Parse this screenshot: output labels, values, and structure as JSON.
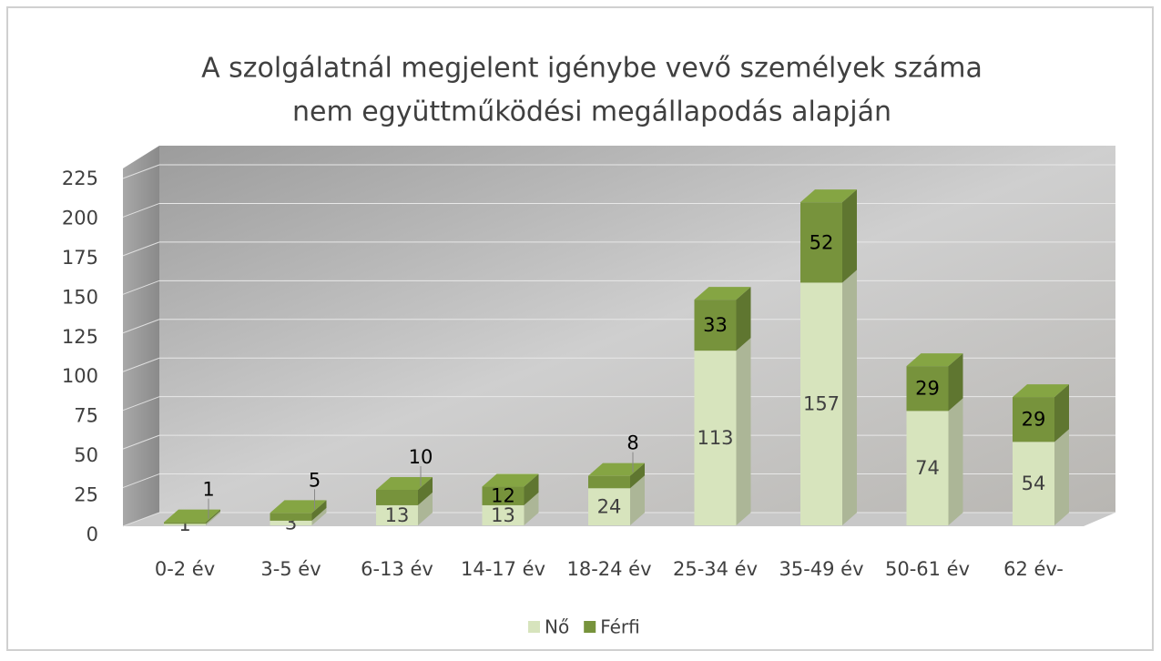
{
  "chart_data": {
    "type": "bar3d-stacked",
    "title": [
      "A szolgálatnál megjelent igénybe vevő személyek száma",
      "nem együttműködési megállapodás alapján"
    ],
    "categories": [
      "0-2 év",
      "3-5 év",
      "6-13 év",
      "14-17 év",
      "18-24 év",
      "25-34 év",
      "35-49 év",
      "50-61 év",
      "62 év-"
    ],
    "series": [
      {
        "name": "Nő",
        "color": "#d7e4bd",
        "values": [
          1,
          3,
          13,
          13,
          24,
          113,
          157,
          74,
          54
        ]
      },
      {
        "name": "Férfi",
        "color": "#77933c",
        "values": [
          1,
          5,
          10,
          12,
          8,
          33,
          52,
          29,
          29
        ]
      }
    ],
    "ylim": [
      0,
      225
    ],
    "yticks": [
      0,
      25,
      50,
      75,
      100,
      125,
      150,
      175,
      200,
      225
    ],
    "grid": true,
    "legend": "bottom"
  }
}
